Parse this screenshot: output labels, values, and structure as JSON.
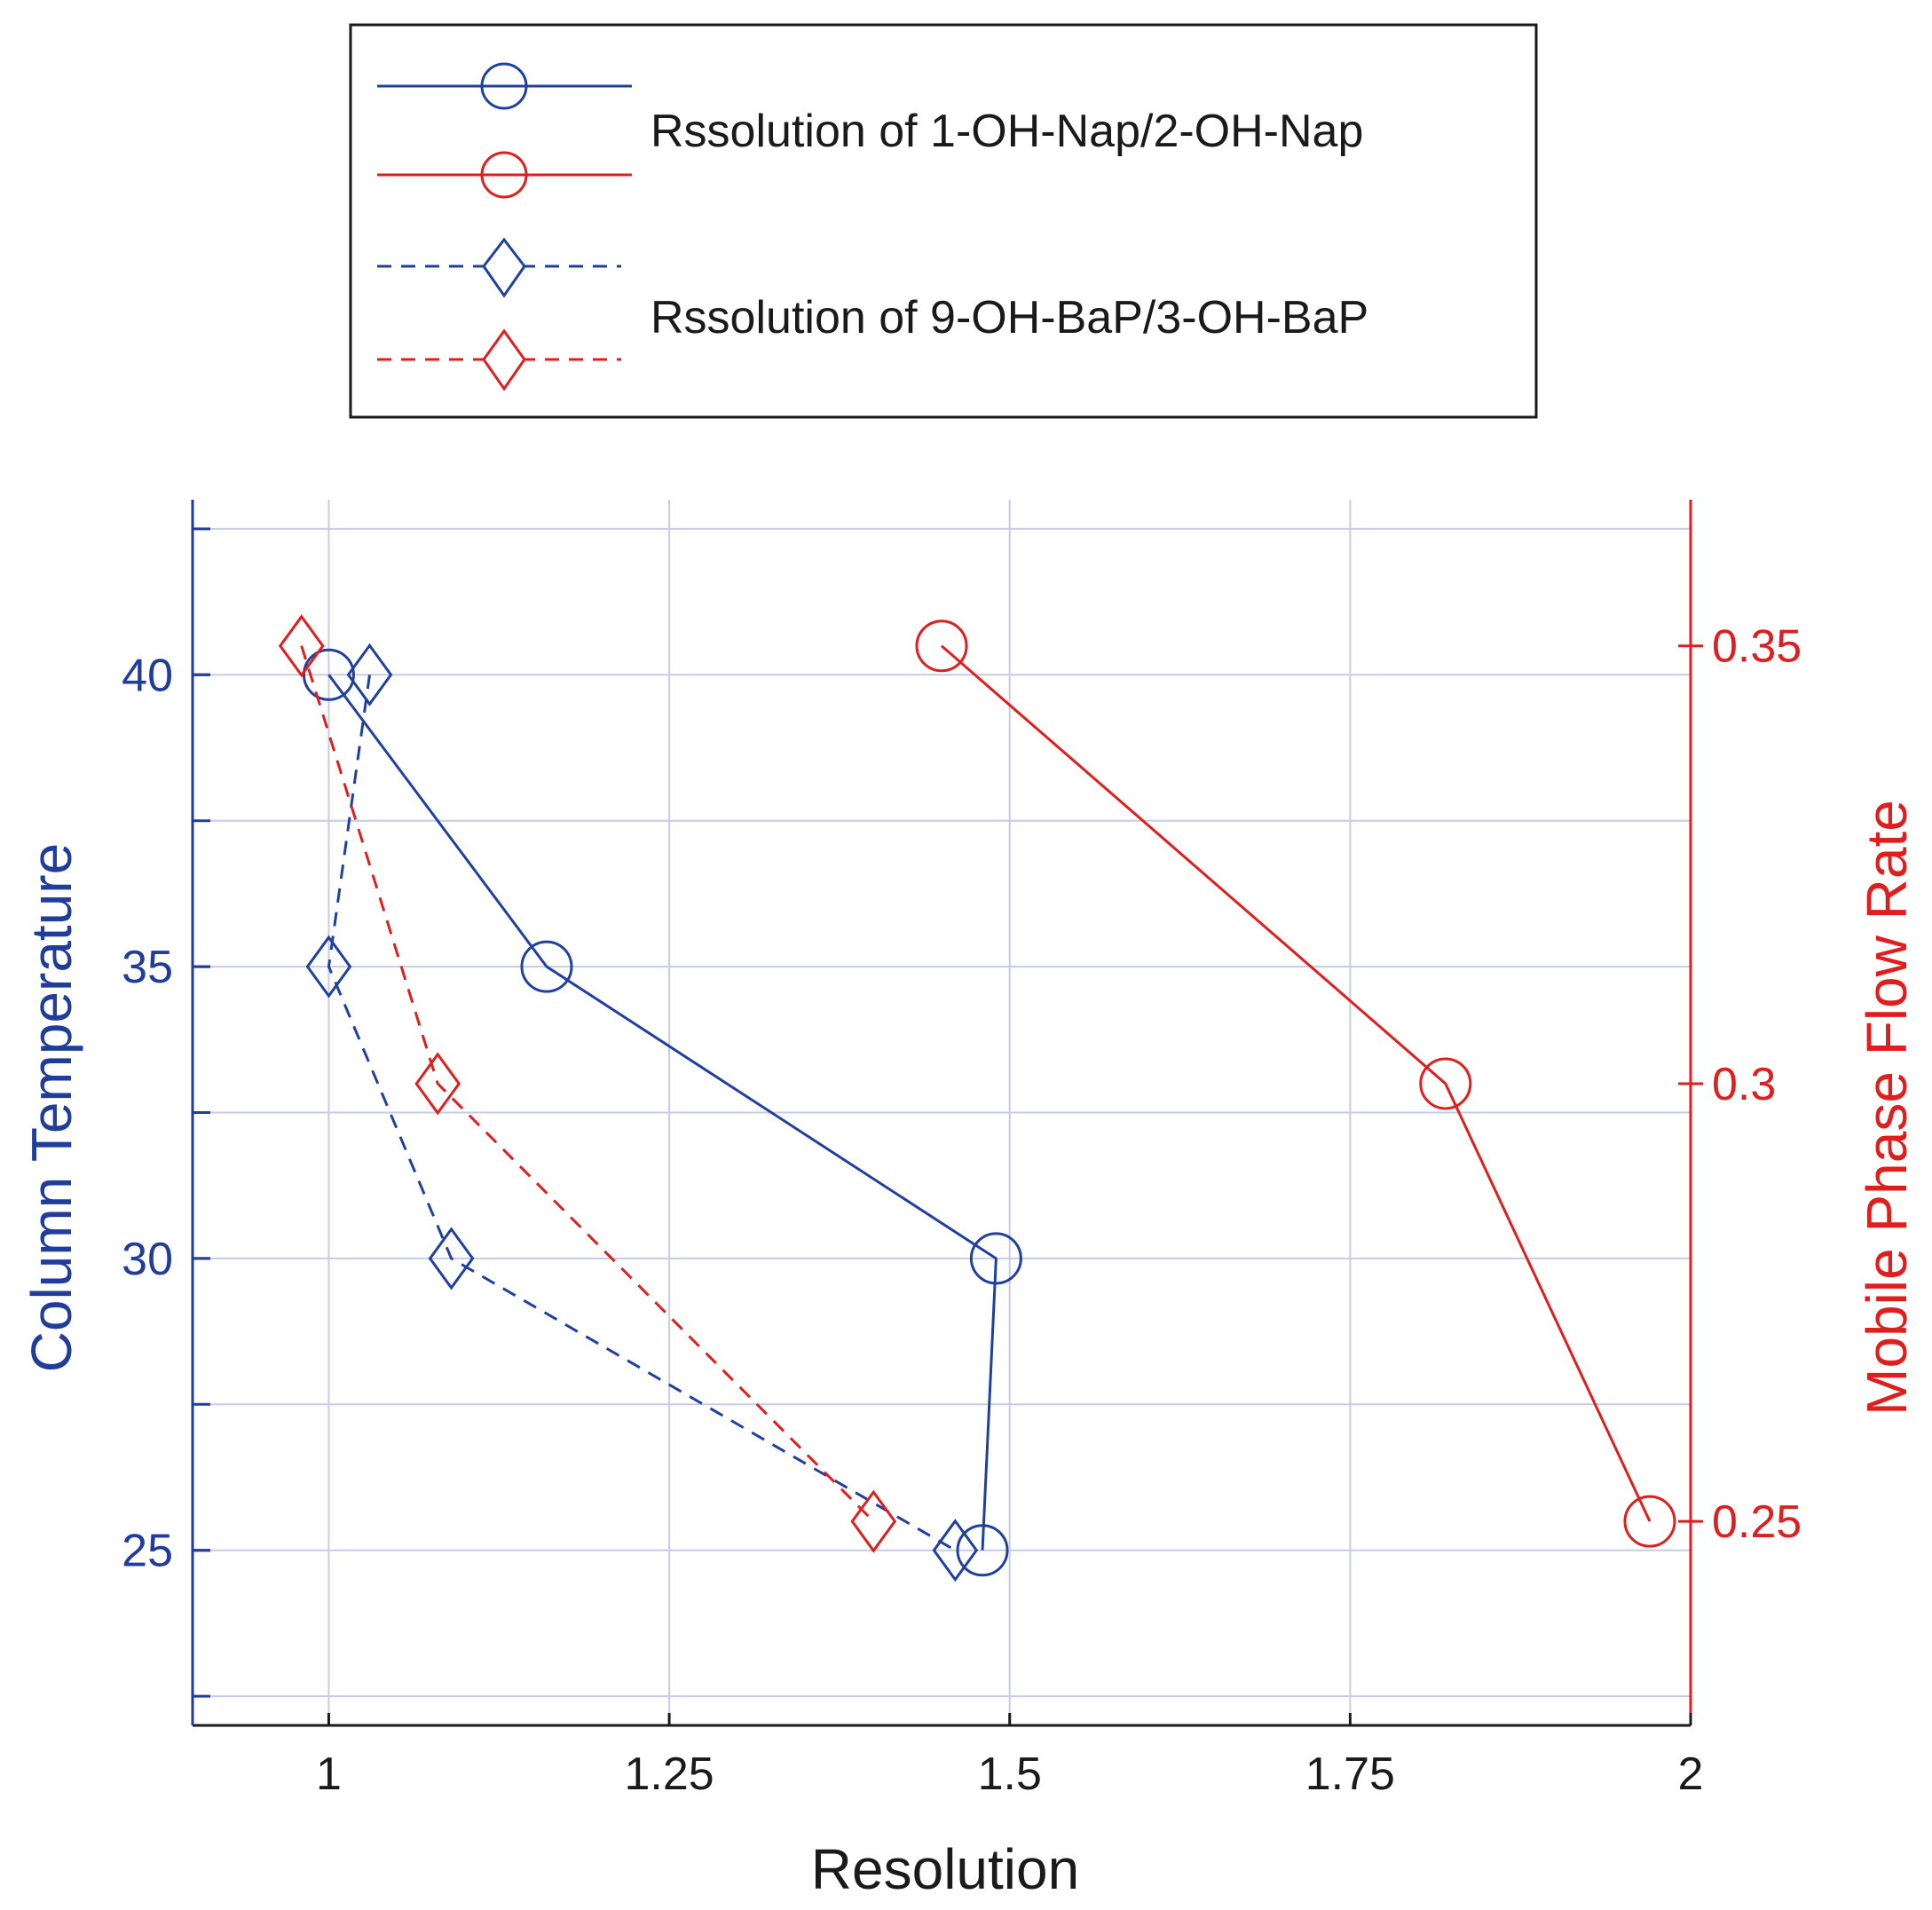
{
  "colors": {
    "left_axis": "#1f3d99",
    "right_axis": "#e01e1e",
    "blue_series": "#2040a0",
    "red_series": "#e01e1e",
    "grid": "#c8cbe6",
    "text": "#1a1a1a"
  },
  "chart_data": {
    "type": "line",
    "xlabel": "Resolution",
    "ylabel_left": "Column Temperature",
    "ylabel_right": "Mobile Phase Flow Rate",
    "xlim": [
      0.9,
      2.0
    ],
    "ylim_left": [
      22.0,
      43.0
    ],
    "ylim_right": [
      0.2267,
      0.3667
    ],
    "xticks": [
      "1",
      "1.25",
      "1.5",
      "1.75",
      "2"
    ],
    "xtick_values": [
      1,
      1.25,
      1.5,
      1.75,
      2
    ],
    "yticks_left": [
      "25",
      "30",
      "35",
      "40"
    ],
    "ytick_left_values": [
      25,
      30,
      35,
      40
    ],
    "yticks_right": [
      "0.25",
      "0.3",
      "0.35"
    ],
    "ytick_right_values": [
      0.25,
      0.3,
      0.35
    ],
    "grid": true,
    "legend": {
      "placement": "top-center",
      "entries": [
        {
          "label": "Rssolution of 1-OH-Nap/2-OH-Nap"
        },
        {
          "label": "Rssolution of 9-OH-BaP/3-OH-BaP"
        }
      ]
    },
    "series": [
      {
        "name": "1-OH-Nap/2-OH-Nap vs Column Temperature",
        "axis": "left",
        "color": "blue",
        "marker": "circle",
        "line": "solid",
        "x": [
          1.0,
          1.16,
          1.49,
          1.48
        ],
        "y": [
          40,
          35,
          30,
          25
        ]
      },
      {
        "name": "1-OH-Nap/2-OH-Nap vs Mobile Phase Flow Rate",
        "axis": "right",
        "color": "red",
        "marker": "circle",
        "line": "solid",
        "x": [
          1.45,
          1.82,
          1.97
        ],
        "y": [
          0.35,
          0.3,
          0.25
        ]
      },
      {
        "name": "9-OH-BaP/3-OH-BaP vs Column Temperature",
        "axis": "left",
        "color": "blue",
        "marker": "diamond",
        "line": "dashed",
        "x": [
          1.03,
          1.0,
          1.09,
          1.46
        ],
        "y": [
          40,
          35,
          30,
          25
        ]
      },
      {
        "name": "9-OH-BaP/3-OH-BaP vs Mobile Phase Flow Rate",
        "axis": "right",
        "color": "red",
        "marker": "diamond",
        "line": "dashed",
        "x": [
          0.98,
          1.08,
          1.4
        ],
        "y": [
          0.35,
          0.3,
          0.25
        ]
      }
    ]
  }
}
